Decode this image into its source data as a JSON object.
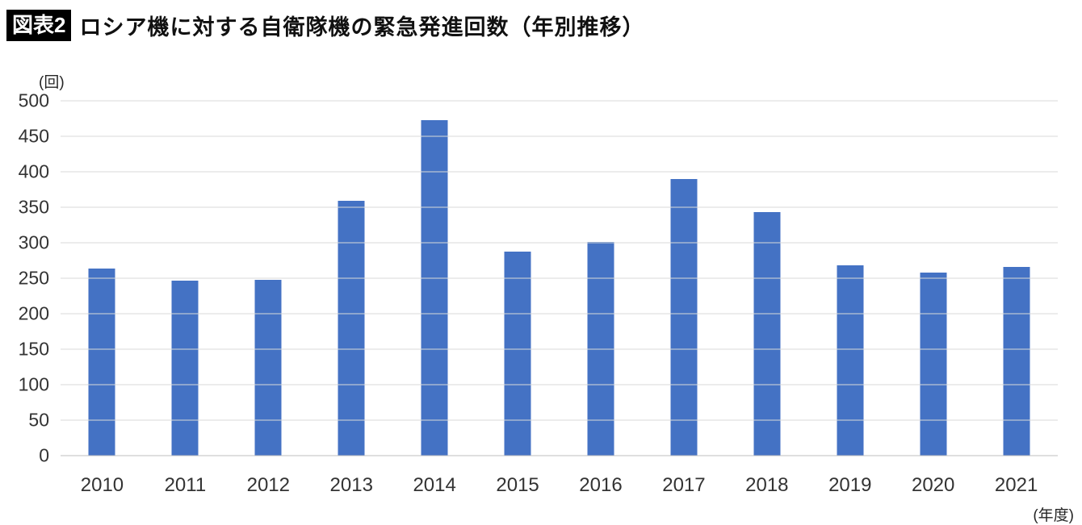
{
  "header": {
    "badge": "図表2",
    "title": "ロシア機に対する自衛隊機の緊急発進回数（年別推移）"
  },
  "chart_data": {
    "type": "bar",
    "title": "ロシア機に対する自衛隊機の緊急発進回数（年別推移）",
    "categories": [
      "2010",
      "2011",
      "2012",
      "2013",
      "2014",
      "2015",
      "2016",
      "2017",
      "2018",
      "2019",
      "2020",
      "2021"
    ],
    "values": [
      264,
      247,
      248,
      359,
      473,
      288,
      301,
      390,
      343,
      268,
      258,
      266
    ],
    "xlabel": "",
    "ylabel": "",
    "y_unit": "(回)",
    "x_unit": "(年度)",
    "ylim": [
      0,
      500
    ],
    "yticks": [
      0,
      50,
      100,
      150,
      200,
      250,
      300,
      350,
      400,
      450,
      500
    ],
    "grid": "horizontal",
    "legend": "none",
    "bar_color": "#4472C4",
    "gridline_color": "#d9d9d9"
  }
}
